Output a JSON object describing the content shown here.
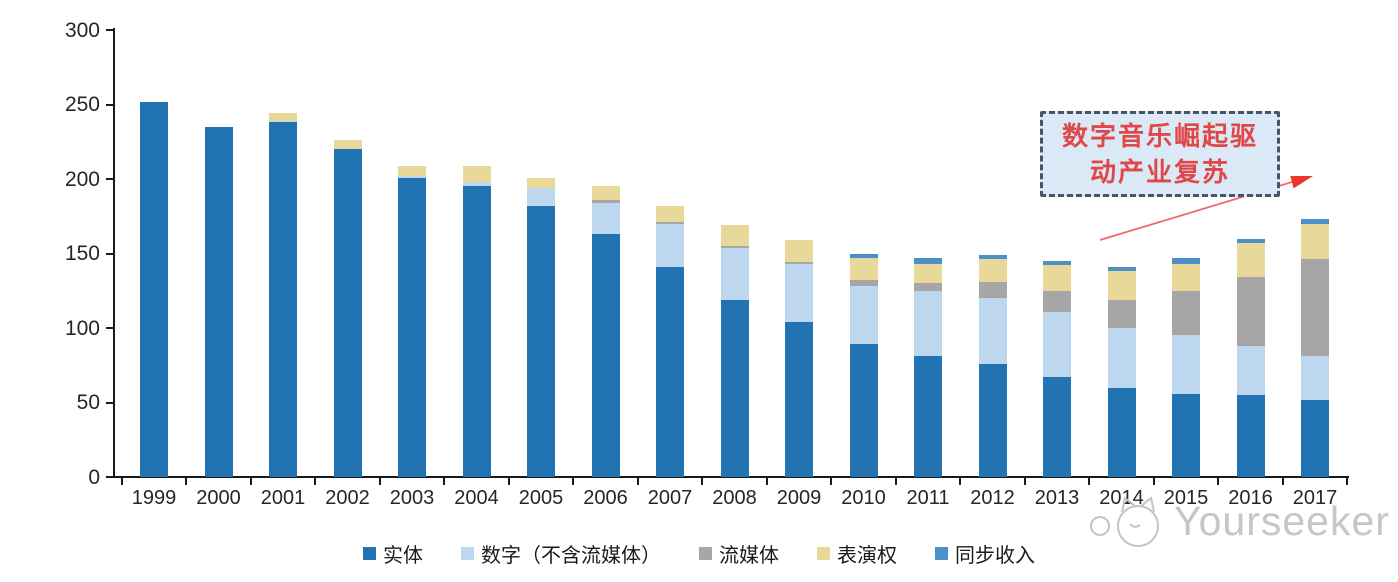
{
  "chart_data": {
    "type": "bar",
    "subtype": "stacked",
    "title": "",
    "xlabel": "",
    "ylabel": "",
    "ylim": [
      0,
      300
    ],
    "yticks": [
      0,
      50,
      100,
      150,
      200,
      250,
      300
    ],
    "grid": false,
    "legend_position": "bottom",
    "categories": [
      "1999",
      "2000",
      "2001",
      "2002",
      "2003",
      "2004",
      "2005",
      "2006",
      "2007",
      "2008",
      "2009",
      "2010",
      "2011",
      "2012",
      "2013",
      "2014",
      "2015",
      "2016",
      "2017"
    ],
    "series": [
      {
        "name": "实体",
        "color": "#2273b2",
        "values": [
          252,
          235,
          238,
          220,
          201,
          195,
          182,
          163,
          141,
          119,
          104,
          89,
          81,
          76,
          67,
          60,
          56,
          55,
          52
        ]
      },
      {
        "name": "数字（不含流媒体）",
        "color": "#bdd7ee",
        "values": [
          0,
          0,
          1,
          0,
          1,
          3,
          12,
          21,
          29,
          35,
          39,
          39,
          44,
          44,
          44,
          40,
          39,
          33,
          29
        ]
      },
      {
        "name": "流媒体",
        "color": "#a6a6a6",
        "values": [
          0,
          0,
          0,
          0,
          0,
          0,
          0,
          2,
          1,
          1,
          1,
          4,
          5,
          11,
          14,
          19,
          30,
          46,
          65
        ]
      },
      {
        "name": "表演权",
        "color": "#e8d99a",
        "values": [
          0,
          0,
          5,
          6,
          7,
          11,
          7,
          9,
          11,
          14,
          15,
          15,
          13,
          15,
          17,
          19,
          18,
          23,
          24
        ]
      },
      {
        "name": "同步收入",
        "color": "#4d8fc9",
        "values": [
          0,
          0,
          0,
          0,
          0,
          0,
          0,
          0,
          0,
          0,
          0,
          3,
          4,
          3,
          3,
          3,
          4,
          3,
          3
        ]
      }
    ],
    "totals": [
      252,
      235,
      244,
      226,
      209,
      209,
      201,
      195,
      182,
      169,
      159,
      150,
      147,
      149,
      145,
      141,
      147,
      160,
      173
    ]
  },
  "annotation": {
    "text_line1": "数字音乐崛起驱",
    "text_line2": "动产业复苏",
    "text_color": "#e04848",
    "box_fill": "#dbe8f6",
    "box_border_color": "#44546a",
    "arrow_color": "#e8382c",
    "arrow_line_color": "#f06a6a"
  },
  "watermark": {
    "text": "Yourseeker",
    "color": "#c6c6c6"
  }
}
